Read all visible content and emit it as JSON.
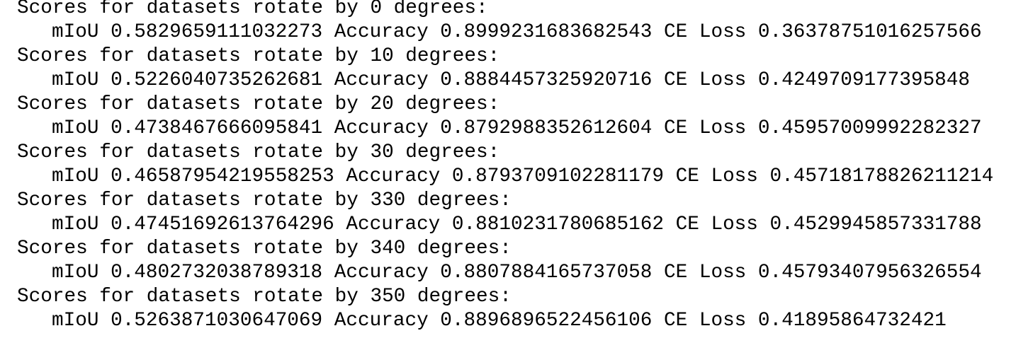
{
  "lines": [
    {
      "header": "Scores for datasets rotate by 0 degrees:",
      "scores": "mIoU 0.5829659111032273 Accuracy 0.8999231683682543 CE Loss 0.36378751016257566"
    },
    {
      "header": "Scores for datasets rotate by 10 degrees:",
      "scores": "mIoU 0.5226040735262681 Accuracy 0.8884457325920716 CE Loss 0.4249709177395848"
    },
    {
      "header": "Scores for datasets rotate by 20 degrees:",
      "scores": "mIoU 0.4738467666095841 Accuracy 0.8792988352612604 CE Loss 0.45957009992282327"
    },
    {
      "header": "Scores for datasets rotate by 30 degrees:",
      "scores": "mIoU 0.46587954219558253 Accuracy 0.8793709102281179 CE Loss 0.45718178826211214"
    },
    {
      "header": "Scores for datasets rotate by 330 degrees:",
      "scores": "mIoU 0.4745169261376429​6 Accuracy 0.8810231780685162 CE Loss 0.4529945857331788"
    },
    {
      "header": "Scores for datasets rotate by 340 degrees:",
      "scores": "mIoU 0.4802732038789318 Accuracy 0.8807884165737058 CE Loss 0.45793407956326554"
    },
    {
      "header": "Scores for datasets rotate by 350 degrees:",
      "scores": "mIoU 0.5263871030647069 Accuracy 0.8896896522456106 CE Loss 0.41895864732421"
    }
  ]
}
